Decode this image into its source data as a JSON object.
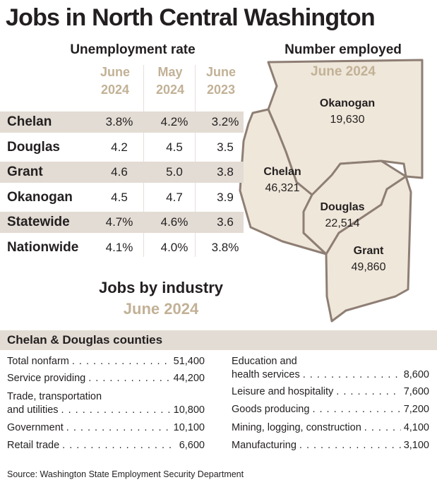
{
  "title": "Jobs in North Central Washington",
  "unemployment": {
    "title": "Unemployment rate",
    "columns": [
      [
        "June",
        "2024"
      ],
      [
        "May",
        "2024"
      ],
      [
        "June",
        "2023"
      ]
    ],
    "rows": [
      [
        "Chelan",
        "3.8%",
        "4.2%",
        "3.2%"
      ],
      [
        "Douglas",
        "4.2",
        "4.5",
        "3.5"
      ],
      [
        "Grant",
        "4.6",
        "5.0",
        "3.8"
      ],
      [
        "Okanogan",
        "4.5",
        "4.7",
        "3.9"
      ],
      [
        "Statewide",
        "4.7%",
        "4.6%",
        "3.6"
      ],
      [
        "Nationwide",
        "4.1%",
        "4.0%",
        "3.8%"
      ]
    ]
  },
  "map": {
    "title": "Number employed",
    "subtitle": "June 2024",
    "counties": [
      {
        "name": "Okanogan",
        "value": "19,630"
      },
      {
        "name": "Chelan",
        "value": "46,321"
      },
      {
        "name": "Douglas",
        "value": "22,514"
      },
      {
        "name": "Grant",
        "value": "49,860"
      }
    ]
  },
  "industry": {
    "title": "Jobs by industry",
    "subtitle": "June 2024",
    "header": "Chelan & Douglas counties",
    "left": [
      {
        "label": [
          "Total nonfarm"
        ],
        "value": "51,400"
      },
      {
        "label": [
          "Service providing"
        ],
        "value": "44,200"
      },
      {
        "label": [
          "Trade, transportation",
          "and utilities"
        ],
        "value": "10,800"
      },
      {
        "label": [
          "Government"
        ],
        "value": "10,100"
      },
      {
        "label": [
          "Retail trade"
        ],
        "value": "6,600"
      }
    ],
    "right": [
      {
        "label": [
          "Education and",
          "health services"
        ],
        "value": "8,600"
      },
      {
        "label": [
          "Leisure and hospitality"
        ],
        "value": "7,600"
      },
      {
        "label": [
          "Goods producing"
        ],
        "value": "7,200"
      },
      {
        "label": [
          "Mining, logging, construction"
        ],
        "value": "4,100"
      },
      {
        "label": [
          "Manufacturing"
        ],
        "value": "3,100"
      }
    ]
  },
  "source": "Source: Washington State Employment Security Department"
}
